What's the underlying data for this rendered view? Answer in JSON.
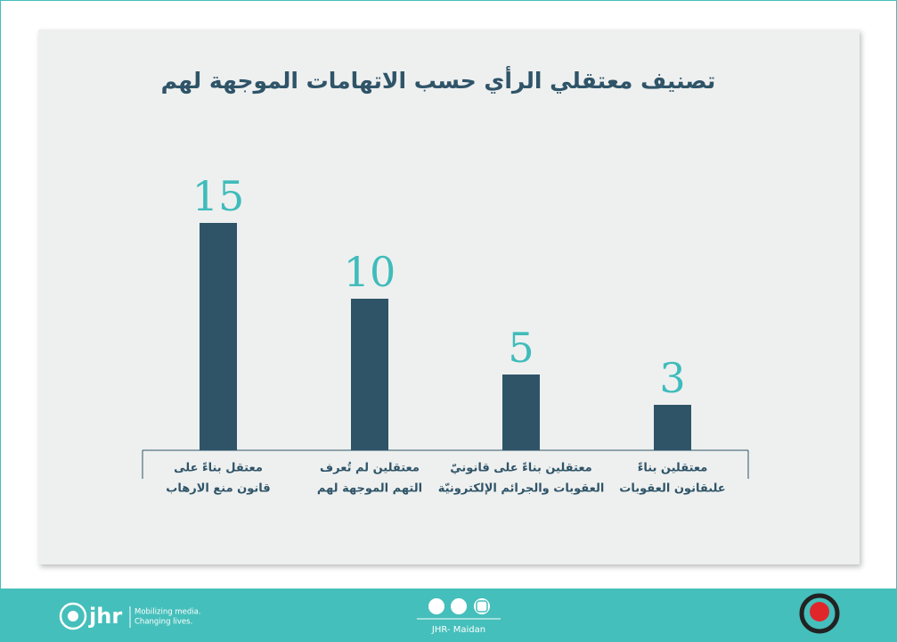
{
  "chart_data": {
    "type": "bar",
    "title": "تصنيف معتقلي الرأي حسب الاتهامات الموجهة لهم",
    "categories": [
      [
        "معتقل بناءً على",
        "قانون منع الارهاب"
      ],
      [
        "معتقلين لم تُعرف",
        "التهم الموجهة لهم"
      ],
      [
        "معتقلين بناءً على قانونيّ",
        "العقوبات والجرائم الإلكترونيّة"
      ],
      [
        "معتقلين بناءً",
        "علىقانون العقوبات"
      ]
    ],
    "values": [
      15,
      10,
      5,
      3
    ],
    "color": "#2f5468",
    "value_label_color": "#3fbcbb"
  },
  "footer": {
    "brand": "jhr",
    "tagline": [
      "Mobilizing media.",
      "Changing lives."
    ],
    "handle": "JHR- Maidan"
  }
}
